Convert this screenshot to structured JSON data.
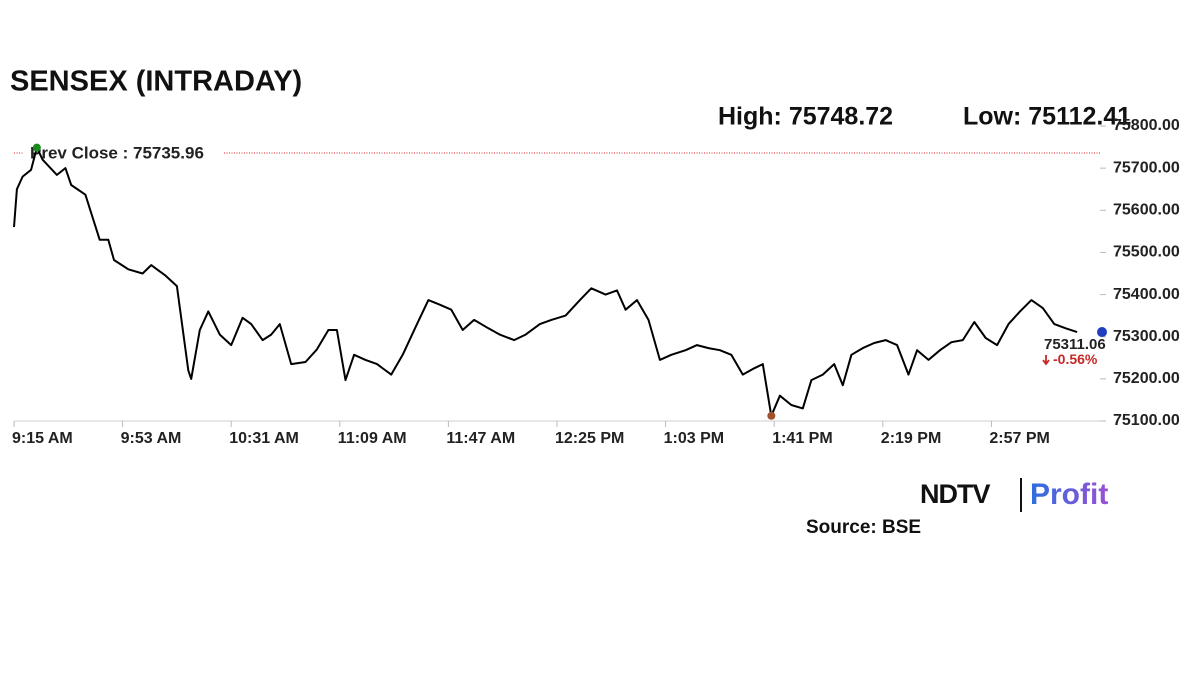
{
  "chart_data": {
    "type": "line",
    "title": "SENSEX (INTRADAY)",
    "high": {
      "value": 75748.72,
      "label": "High: 75748.72"
    },
    "low": {
      "value": 75112.41,
      "label": "Low: 75112.41"
    },
    "prev_close": {
      "value": 75735.96,
      "label": "Prev Close : 75735.96"
    },
    "last": 75311.06,
    "change": {
      "value": -0.56,
      "label": "-0.56%"
    },
    "brand": "NDTV",
    "brand_suffix": "Profit",
    "source": "Source: BSE",
    "xlim": [
      "9:15 AM",
      "3:35 PM"
    ],
    "xticks": [
      "9:15 AM",
      "9:53 AM",
      "10:31 AM",
      "11:09 AM",
      "11:47 AM",
      "12:25 PM",
      "1:03 PM",
      "1:41 PM",
      "2:19 PM",
      "2:57 PM"
    ],
    "ylim": [
      75100,
      75800
    ],
    "yticks": [
      {
        "value": 75100,
        "label": "75100.00"
      },
      {
        "value": 75200,
        "label": "75200.00"
      },
      {
        "value": 75300,
        "label": "75300.00"
      },
      {
        "value": 75400,
        "label": "75400.00"
      },
      {
        "value": 75500,
        "label": "75500.00"
      },
      {
        "value": 75600,
        "label": "75600.00"
      },
      {
        "value": 75700,
        "label": "75700.00"
      },
      {
        "value": 75800,
        "label": "75800.00"
      }
    ],
    "series": [
      {
        "name": "SENSEX",
        "color": "#000000",
        "x": [
          "9:15 AM",
          "9:16 AM",
          "9:18 AM",
          "9:21 AM",
          "9:23 AM",
          "9:25 AM",
          "9:30 AM",
          "9:33 AM",
          "9:35 AM",
          "9:40 AM",
          "9:45 AM",
          "9:48 AM",
          "9:50 AM",
          "9:55 AM",
          "10:00 AM",
          "10:03 AM",
          "10:05 AM",
          "10:08 AM",
          "10:12 AM",
          "10:16 AM",
          "10:17 AM",
          "10:20 AM",
          "10:23 AM",
          "10:27 AM",
          "10:31 AM",
          "10:35 AM",
          "10:38 AM",
          "10:42 AM",
          "10:45 AM",
          "10:48 AM",
          "10:52 AM",
          "10:57 AM",
          "11:01 AM",
          "11:05 AM",
          "11:08 AM",
          "11:11 AM",
          "11:14 AM",
          "11:18 AM",
          "11:22 AM",
          "11:27 AM",
          "11:31 AM",
          "11:36 AM",
          "11:40 AM",
          "11:44 AM",
          "11:48 AM",
          "11:52 AM",
          "11:56 AM",
          "12:01 PM",
          "12:05 PM",
          "12:10 PM",
          "12:14 PM",
          "12:19 PM",
          "12:23 PM",
          "12:28 PM",
          "12:33 PM",
          "12:37 PM",
          "12:42 PM",
          "12:46 PM",
          "12:49 PM",
          "12:53 PM",
          "12:57 PM",
          "1:01 PM",
          "1:05 PM",
          "1:10 PM",
          "1:14 PM",
          "1:18 PM",
          "1:22 PM",
          "1:26 PM",
          "1:30 PM",
          "1:34 PM",
          "1:37 PM",
          "1:40 PM",
          "1:43 PM",
          "1:47 PM",
          "1:51 PM",
          "1:54 PM",
          "1:58 PM",
          "2:02 PM",
          "2:05 PM",
          "2:08 PM",
          "2:12 PM",
          "2:16 PM",
          "2:20 PM",
          "2:24 PM",
          "2:28 PM",
          "2:31 PM",
          "2:35 PM",
          "2:39 PM",
          "2:43 PM",
          "2:47 PM",
          "2:51 PM",
          "2:55 PM",
          "2:59 PM",
          "3:03 PM",
          "3:07 PM",
          "3:11 PM",
          "3:15 PM",
          "3:19 PM",
          "3:23 PM",
          "3:27 PM"
        ],
        "values": [
          75560,
          75650,
          75680,
          75696,
          75748.72,
          75720,
          75684,
          75700,
          75660,
          75637,
          75530,
          75530,
          75482,
          75460,
          75450,
          75470,
          75460,
          75445,
          75420,
          75220,
          75200,
          75316,
          75360,
          75305,
          75280,
          75345,
          75330,
          75292,
          75305,
          75330,
          75235,
          75240,
          75270,
          75316,
          75316,
          75197,
          75257,
          75245,
          75235,
          75210,
          75257,
          75330,
          75387,
          75376,
          75364,
          75316,
          75340,
          75320,
          75305,
          75292,
          75305,
          75330,
          75340,
          75350,
          75387,
          75415,
          75400,
          75410,
          75364,
          75387,
          75340,
          75245,
          75257,
          75268,
          75280,
          75273,
          75268,
          75257,
          75210,
          75225,
          75235,
          75112.41,
          75160,
          75138,
          75130,
          75197,
          75210,
          75235,
          75185,
          75257,
          75273,
          75285,
          75292,
          75280,
          75210,
          75268,
          75245,
          75268,
          75287,
          75292,
          75335,
          75297,
          75280,
          75330,
          75360,
          75387,
          75368,
          75330,
          75320,
          75311.06
        ]
      }
    ]
  }
}
